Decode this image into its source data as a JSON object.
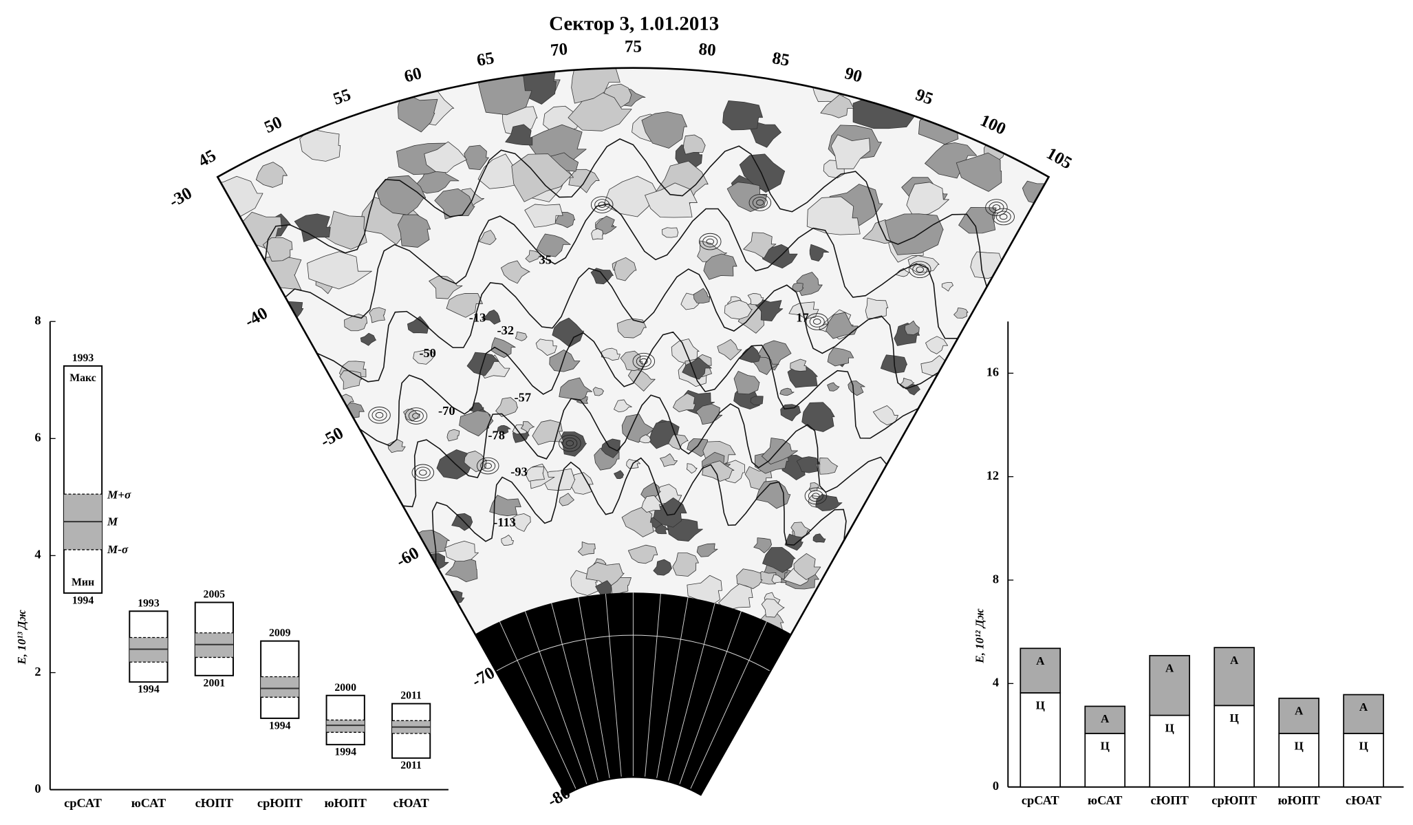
{
  "title": "Сектор 3, 1.01.2013",
  "map": {
    "lon_labels": [
      45,
      50,
      55,
      60,
      65,
      70,
      75,
      80,
      85,
      90,
      95,
      100,
      105
    ],
    "lat_labels": [
      -30,
      -40,
      -50,
      -60,
      -70,
      -80
    ],
    "contour_labels": [
      "35",
      "-13",
      "-32",
      "17",
      "-50",
      "-57",
      "-70",
      "-78",
      "-93",
      "-113"
    ]
  },
  "chart_data": [
    {
      "type": "range",
      "ylabel": "E, 10¹³ Дж",
      "categories": [
        "срСАТ",
        "юСАТ",
        "сЮПТ",
        "срЮПТ",
        "юЮПТ",
        "сЮАТ"
      ],
      "max": [
        7.24,
        3.05,
        3.2,
        2.54,
        1.61,
        1.47
      ],
      "min": [
        3.36,
        1.84,
        1.95,
        1.22,
        0.77,
        0.54
      ],
      "mean": [
        4.58,
        2.4,
        2.48,
        1.73,
        1.1,
        1.07
      ],
      "mean_plus_sigma": [
        5.05,
        2.6,
        2.68,
        1.93,
        1.19,
        1.18
      ],
      "mean_minus_sigma": [
        4.1,
        2.18,
        2.26,
        1.58,
        0.98,
        0.96
      ],
      "max_year_labels": [
        "1993",
        "1993",
        "2005",
        "2009",
        "2000",
        "2011"
      ],
      "min_year_labels": [
        "1994",
        "1994",
        "2001",
        "1994",
        "1994",
        "2011"
      ],
      "annotations": {
        "max": "Макс",
        "min": "Мин",
        "mean_plus_sigma": "M+σ",
        "mean": "M",
        "mean_minus_sigma": "M-σ"
      },
      "band_color": "#b3b3b3",
      "ylim": [
        0,
        8
      ],
      "yticks": [
        0,
        2,
        4,
        6,
        8
      ]
    },
    {
      "type": "stacked_bar",
      "ylabel": "E, 10¹² Дж",
      "categories": [
        "срСАТ",
        "юСАТ",
        "сЮПТ",
        "срЮПТ",
        "юЮПТ",
        "сЮАТ"
      ],
      "series": [
        {
          "name": "Ц",
          "color": "#ffffff",
          "values": [
            3.64,
            2.07,
            2.77,
            3.15,
            2.07,
            2.07
          ]
        },
        {
          "name": "А",
          "color": "#aaaaaa",
          "values": [
            1.72,
            1.05,
            2.31,
            2.24,
            1.36,
            1.5
          ]
        }
      ],
      "ylim": [
        0,
        18
      ],
      "yticks": [
        0,
        4,
        8,
        12,
        16
      ]
    }
  ]
}
